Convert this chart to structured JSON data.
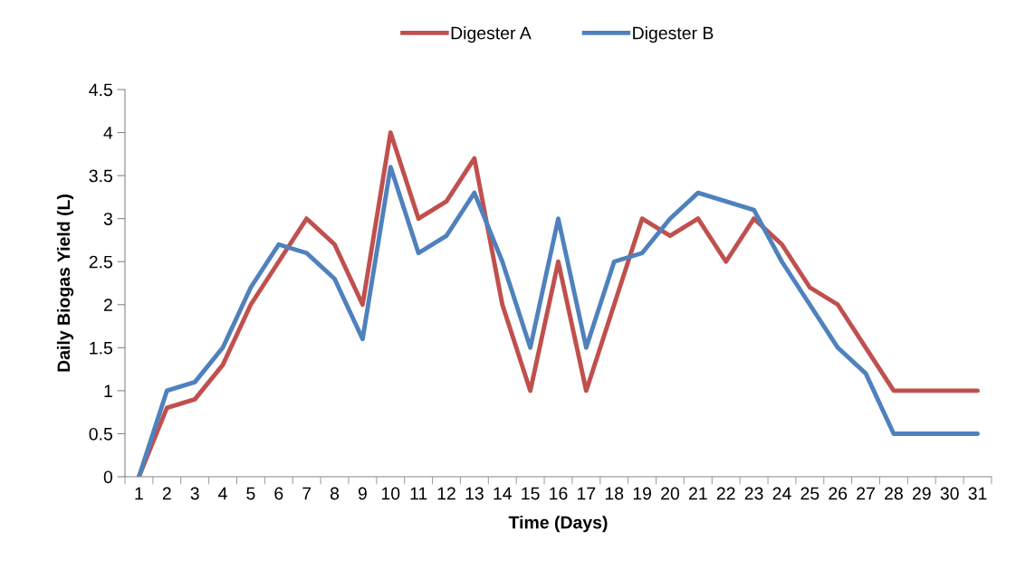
{
  "chart_data": {
    "type": "line",
    "xlabel": "Time (Days)",
    "ylabel": "Daily Biogas Yield (L)",
    "categories": [
      "1",
      "2",
      "3",
      "4",
      "5",
      "6",
      "7",
      "8",
      "9",
      "10",
      "11",
      "12",
      "13",
      "14",
      "15",
      "16",
      "17",
      "18",
      "19",
      "20",
      "21",
      "22",
      "23",
      "24",
      "25",
      "26",
      "27",
      "28",
      "29",
      "30",
      "31"
    ],
    "series": [
      {
        "name": "Digester A",
        "color": "#c0504d",
        "values": [
          0,
          0.8,
          0.9,
          1.3,
          2,
          2.5,
          3,
          2.7,
          2,
          4,
          3,
          3.2,
          3.7,
          2,
          1,
          2.5,
          1,
          2,
          3,
          2.8,
          3,
          2.5,
          3,
          2.7,
          2.2,
          2,
          1.5,
          1,
          1,
          1,
          1
        ]
      },
      {
        "name": "Digester B",
        "color": "#4f81bd",
        "values": [
          0,
          1,
          1.1,
          1.5,
          2.2,
          2.7,
          2.6,
          2.3,
          1.6,
          3.6,
          2.6,
          2.8,
          3.3,
          2.5,
          1.5,
          3,
          1.5,
          2.5,
          2.6,
          3,
          3.3,
          3.2,
          3.1,
          2.5,
          2,
          1.5,
          1.2,
          0.5,
          0.5,
          0.5,
          0.5
        ]
      }
    ],
    "ylim": [
      0,
      4.5
    ],
    "yticks": [
      0,
      0.5,
      1,
      1.5,
      2,
      2.5,
      3,
      3.5,
      4,
      4.5
    ],
    "grid": false,
    "legend": "top",
    "marker": "none",
    "line_style": "solid"
  }
}
